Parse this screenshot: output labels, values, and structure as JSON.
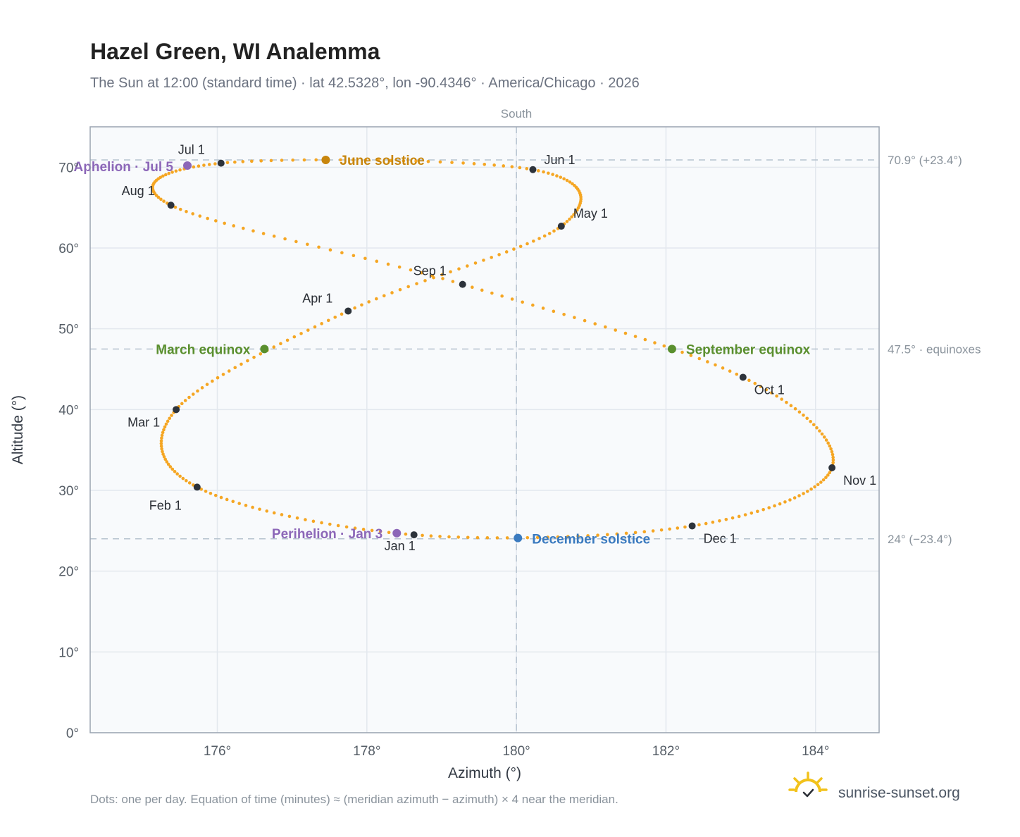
{
  "chart_data": {
    "type": "scatter",
    "title": "Hazel Green, WI Analemma",
    "subtitle": "The Sun at 12:00 (standard time) · lat 42.5328°, lon -90.4346° · America/Chicago · 2026",
    "xlabel": "Azimuth (°)",
    "ylabel": "Altitude (°)",
    "top_label": "South",
    "xlim": [
      174.3,
      184.85
    ],
    "ylim": [
      0,
      75
    ],
    "x_ticks": [
      176,
      178,
      180,
      182,
      184
    ],
    "y_ticks": [
      0,
      10,
      20,
      30,
      40,
      50,
      60,
      70
    ],
    "x_tick_labels": [
      "176°",
      "178°",
      "180°",
      "182°",
      "184°"
    ],
    "y_tick_labels": [
      "0°",
      "10°",
      "20°",
      "30°",
      "40°",
      "50°",
      "60°",
      "70°"
    ],
    "grid": true,
    "colors": {
      "daily_dots": "#f5a623",
      "month_markers": "#2d333b",
      "june_solstice": "#c8860d",
      "december_solstice": "#3a7abf",
      "equinox": "#5a8f2e",
      "apsis": "#8c67b8",
      "reference_lines": "#b6c3cf"
    },
    "reference_lines": {
      "horizontal": [
        {
          "value": 70.9,
          "label": "70.9° (+23.4°)"
        },
        {
          "value": 47.5,
          "label": "47.5° · equinoxes"
        },
        {
          "value": 24.0,
          "label": "24° (−23.4°)"
        }
      ],
      "vertical": [
        {
          "value": 180
        }
      ]
    },
    "series": [
      {
        "name": "Daily sun position",
        "points": [
          {
            "x": 178.63,
            "y": 24.5,
            "date": "Jan 1"
          },
          {
            "x": 175.73,
            "y": 30.4,
            "date": "Feb 1"
          },
          {
            "x": 175.45,
            "y": 40.0,
            "date": "Mar 1"
          },
          {
            "x": 177.75,
            "y": 52.2,
            "date": "Apr 1"
          },
          {
            "x": 180.6,
            "y": 62.7,
            "date": "May 1"
          },
          {
            "x": 180.22,
            "y": 69.7,
            "date": "Jun 1"
          },
          {
            "x": 176.05,
            "y": 70.5,
            "date": "Jul 1"
          },
          {
            "x": 175.38,
            "y": 65.3,
            "date": "Aug 1"
          },
          {
            "x": 179.28,
            "y": 55.5,
            "date": "Sep 1"
          },
          {
            "x": 183.03,
            "y": 44.0,
            "date": "Oct 1"
          },
          {
            "x": 184.22,
            "y": 32.8,
            "date": "Nov 1"
          },
          {
            "x": 182.35,
            "y": 25.6,
            "date": "Dec 1"
          }
        ]
      }
    ],
    "events": [
      {
        "label": "June solstice",
        "x": 177.45,
        "y": 70.9,
        "kind": "june_solstice"
      },
      {
        "label": "December solstice",
        "x": 180.02,
        "y": 24.1,
        "kind": "december_solstice"
      },
      {
        "label": "March equinox",
        "x": 176.63,
        "y": 47.5,
        "kind": "equinox"
      },
      {
        "label": "September equinox",
        "x": 182.08,
        "y": 47.5,
        "kind": "equinox"
      },
      {
        "label": "Aphelion · Jul 5",
        "x": 175.6,
        "y": 70.2,
        "kind": "apsis"
      },
      {
        "label": "Perihelion · Jan 3",
        "x": 178.4,
        "y": 24.7,
        "kind": "apsis"
      }
    ],
    "footnote": "Dots: one per day. Equation of time (minutes) ≈ (meridian azimuth − azimuth) × 4 near the meridian."
  },
  "brand": {
    "name": "sunrise-sunset.org",
    "logo_icon": "sun-logo-icon"
  }
}
